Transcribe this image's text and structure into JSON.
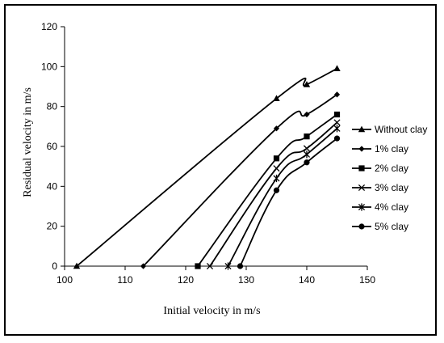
{
  "chart_data": {
    "type": "line",
    "title": "",
    "xlabel": "Initial velocity in m/s",
    "ylabel": "Residual  velocity in m/s",
    "xlim": [
      100,
      150
    ],
    "ylim": [
      0,
      120
    ],
    "x_ticks": [
      100,
      110,
      120,
      130,
      140,
      150
    ],
    "y_ticks": [
      0,
      20,
      40,
      60,
      80,
      100,
      120
    ],
    "grid": false,
    "legend_position": "right",
    "series": [
      {
        "name": "Without clay",
        "marker": "triangle",
        "x": [
          102,
          135,
          140,
          145
        ],
        "y": [
          0,
          84,
          91,
          99
        ]
      },
      {
        "name": "1% clay",
        "marker": "diamond",
        "x": [
          113,
          135,
          140,
          145
        ],
        "y": [
          0,
          69,
          76,
          86
        ]
      },
      {
        "name": "2% clay",
        "marker": "square",
        "x": [
          122,
          135,
          140,
          145
        ],
        "y": [
          0,
          54,
          65,
          76
        ]
      },
      {
        "name": "3% clay",
        "marker": "x",
        "x": [
          124,
          135,
          140,
          145
        ],
        "y": [
          0,
          49,
          59,
          72
        ]
      },
      {
        "name": "4% clay",
        "marker": "asterisk",
        "x": [
          127,
          135,
          140,
          145
        ],
        "y": [
          0,
          44,
          56,
          69
        ]
      },
      {
        "name": "5% clay",
        "marker": "circle",
        "x": [
          129,
          135,
          140,
          145
        ],
        "y": [
          0,
          38,
          52,
          64
        ]
      }
    ]
  }
}
